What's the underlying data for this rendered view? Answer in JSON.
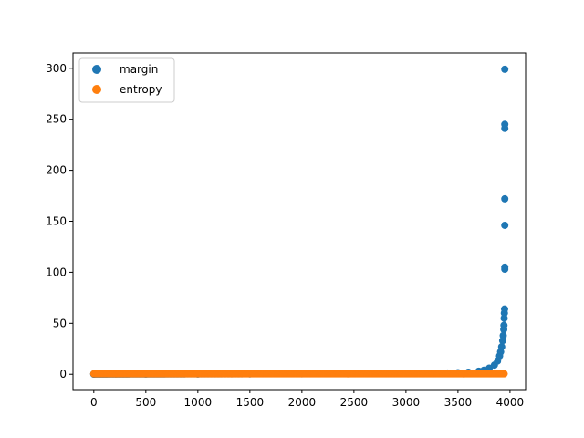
{
  "chart_data": {
    "type": "scatter",
    "xlim": [
      -200,
      4150
    ],
    "ylim": [
      -15,
      315
    ],
    "x_ticks": [
      0,
      500,
      1000,
      1500,
      2000,
      2500,
      3000,
      3500,
      4000
    ],
    "y_ticks": [
      0,
      50,
      100,
      150,
      200,
      250,
      300
    ],
    "x_tick_labels": [
      "0",
      "500",
      "1000",
      "1500",
      "2000",
      "2500",
      "3000",
      "3500",
      "4000"
    ],
    "y_tick_labels": [
      "0",
      "50",
      "100",
      "150",
      "200",
      "250",
      "300"
    ],
    "legend_position": "upper-left",
    "series": [
      {
        "name": "margin",
        "color": "#1f77b4",
        "x_range": [
          0,
          3950
        ],
        "y_range": [
          0,
          299
        ],
        "description_points": [
          [
            0,
            0.2
          ],
          [
            500,
            0.3
          ],
          [
            1000,
            0.3
          ],
          [
            1500,
            0.4
          ],
          [
            2000,
            0.5
          ],
          [
            2500,
            0.6
          ],
          [
            3000,
            0.8
          ],
          [
            3400,
            1.2
          ],
          [
            3500,
            1.5
          ],
          [
            3600,
            2.0
          ],
          [
            3700,
            3.0
          ],
          [
            3750,
            4.0
          ],
          [
            3800,
            6.0
          ],
          [
            3850,
            9.0
          ],
          [
            3880,
            13
          ],
          [
            3900,
            18
          ],
          [
            3910,
            22
          ],
          [
            3920,
            27
          ],
          [
            3930,
            33
          ],
          [
            3935,
            38
          ],
          [
            3940,
            44
          ],
          [
            3942,
            48
          ],
          [
            3944,
            55
          ],
          [
            3946,
            60
          ],
          [
            3948,
            64
          ],
          [
            3950,
            103
          ],
          [
            3950,
            105
          ],
          [
            3950,
            146
          ],
          [
            3950,
            172
          ],
          [
            3950,
            241
          ],
          [
            3950,
            245
          ],
          [
            3950,
            299
          ]
        ]
      },
      {
        "name": "entropy",
        "color": "#ff7f0e",
        "x_range": [
          0,
          3950
        ],
        "y_value": 0.5
      }
    ]
  }
}
